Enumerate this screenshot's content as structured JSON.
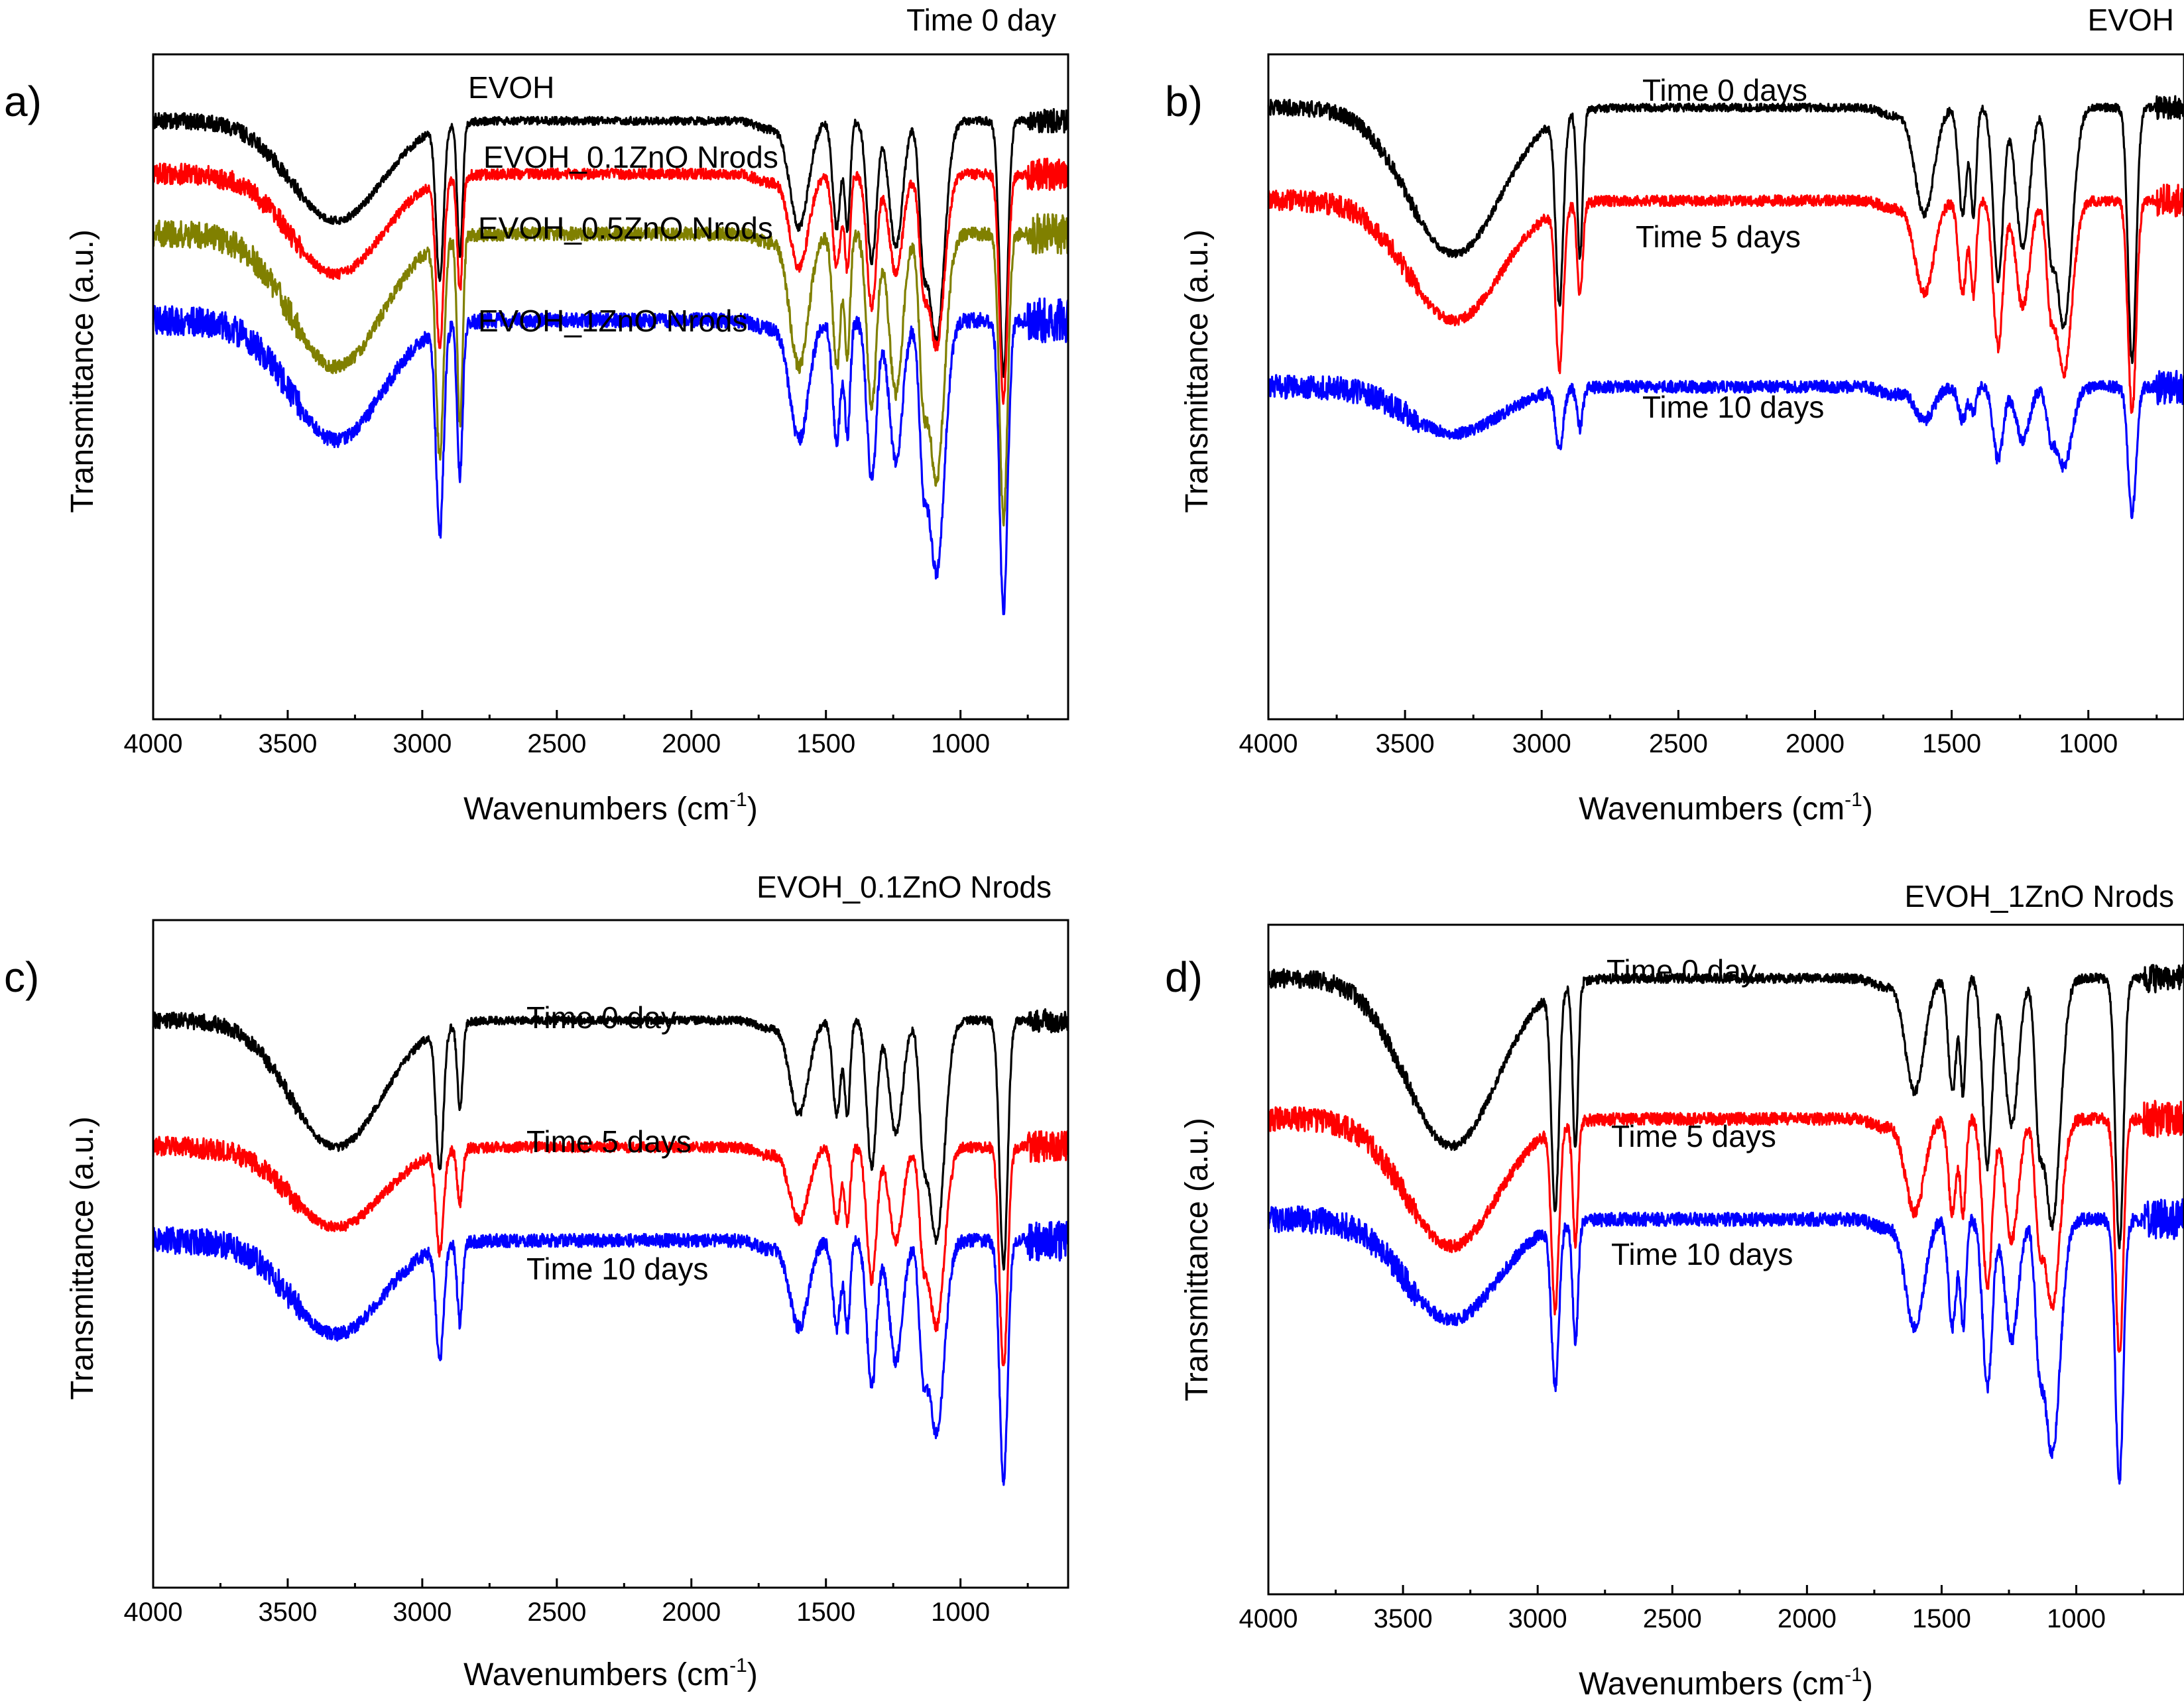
{
  "chart_data": [
    {
      "panel": "a)",
      "type": "line",
      "title": "Time 0 day",
      "xlabel": "Wavenumbers (cm",
      "xlabel_sup": "-1",
      "xlabel_suffix": ")",
      "ylabel": "Transmittance (a.u.)",
      "xlim": [
        4000,
        600
      ],
      "ylim": [
        0,
        100
      ],
      "xticks": [
        4000,
        3500,
        3000,
        2500,
        2000,
        1500,
        1000
      ],
      "grid": false,
      "series": [
        {
          "name": "EVOH",
          "color": "#000000",
          "offset": 90,
          "depths": [
            15,
            23,
            20,
            16,
            16,
            16,
            21,
            19,
            14,
            33,
            38
          ],
          "noise": 0.6
        },
        {
          "name": "EVOH_0.1ZnO Nrods",
          "color": "#ff0000",
          "offset": 82,
          "depths": [
            15,
            25,
            17,
            14,
            14,
            14,
            20,
            15,
            11,
            26,
            34
          ],
          "noise": 0.8
        },
        {
          "name": "EVOH_0.5ZnO Nrods",
          "color": "#808000",
          "offset": 73,
          "depths": [
            20,
            32,
            28,
            20,
            20,
            18,
            26,
            24,
            17,
            37,
            43
          ],
          "noise": 1.0
        },
        {
          "name": "EVOH_1ZnO Nrods",
          "color": "#0000ff",
          "offset": 60,
          "depths": [
            18,
            31,
            23,
            18,
            18,
            17,
            24,
            21,
            16,
            38,
            44
          ],
          "noise": 1.1
        }
      ]
    },
    {
      "panel": "b)",
      "type": "line",
      "title": "EVOH",
      "xlabel": "Wavenumbers (cm",
      "xlabel_sup": "-1",
      "xlabel_suffix": ")",
      "ylabel": "Transmittance (a.u.)",
      "xlim": [
        4000,
        650
      ],
      "ylim": [
        0,
        100
      ],
      "xticks": [
        4000,
        3500,
        3000,
        2500,
        2000,
        1500,
        1000
      ],
      "grid": false,
      "series": [
        {
          "name": "Time 0 days",
          "color": "#000000",
          "offset": 92,
          "depths": [
            22,
            28,
            22,
            16,
            16,
            16,
            26,
            21,
            14,
            33,
            38
          ],
          "noise": 0.6
        },
        {
          "name": "Time 5 days",
          "color": "#ff0000",
          "offset": 78,
          "depths": [
            18,
            24,
            14,
            14,
            14,
            14,
            22,
            16,
            11,
            26,
            32
          ],
          "noise": 0.8
        },
        {
          "name": "Time 10 days",
          "color": "#0000ff",
          "offset": 50,
          "depths": [
            7,
            9,
            6,
            5,
            5,
            4,
            11,
            8,
            5,
            12,
            19
          ],
          "noise": 0.9
        }
      ]
    },
    {
      "panel": "c)",
      "type": "line",
      "title": "EVOH_0.1ZnO Nrods",
      "xlabel": "Wavenumbers (cm",
      "xlabel_sup": "-1",
      "xlabel_suffix": ")",
      "ylabel": "Transmittance (a.u.)",
      "xlim": [
        4000,
        600
      ],
      "ylim": [
        0,
        100
      ],
      "xticks": [
        4000,
        3500,
        3000,
        2500,
        2000,
        1500,
        1000
      ],
      "grid": false,
      "series": [
        {
          "name": "Time 0 day",
          "color": "#000000",
          "offset": 85,
          "depths": [
            19,
            21,
            13,
            14,
            14,
            14,
            22,
            17,
            13,
            33,
            37
          ],
          "noise": 0.6
        },
        {
          "name": "Time 5 days",
          "color": "#ff0000",
          "offset": 66,
          "depths": [
            12,
            15,
            8,
            11,
            11,
            11,
            20,
            14,
            11,
            27,
            33
          ],
          "noise": 0.8
        },
        {
          "name": "Time 10 days",
          "color": "#0000ff",
          "offset": 52,
          "depths": [
            14,
            17,
            12,
            13,
            13,
            13,
            22,
            18,
            14,
            29,
            36
          ],
          "noise": 1.0
        }
      ]
    },
    {
      "panel": "d)",
      "type": "line",
      "title": "EVOH_1ZnO Nrods",
      "xlabel": "Wavenumbers (cm",
      "xlabel_sup": "-1",
      "xlabel_suffix": ")",
      "ylabel": "Transmittance (a.u.)",
      "xlim": [
        4000,
        600
      ],
      "ylim": [
        0,
        100
      ],
      "xticks": [
        4000,
        3500,
        3000,
        2500,
        2000,
        1500,
        1000
      ],
      "grid": false,
      "series": [
        {
          "name": "Time 0 day",
          "color": "#000000",
          "offset": 92,
          "depths": [
            25,
            33,
            25,
            17,
            17,
            17,
            28,
            22,
            16,
            37,
            40
          ],
          "noise": 0.7
        },
        {
          "name": "Time 5 days",
          "color": "#ff0000",
          "offset": 71,
          "depths": [
            19,
            27,
            18,
            14,
            14,
            14,
            25,
            18,
            12,
            28,
            35
          ],
          "noise": 0.9
        },
        {
          "name": "Time 10 days",
          "color": "#0000ff",
          "offset": 56,
          "depths": [
            15,
            24,
            18,
            16,
            16,
            16,
            25,
            18,
            14,
            35,
            39
          ],
          "noise": 1.0
        }
      ]
    }
  ]
}
